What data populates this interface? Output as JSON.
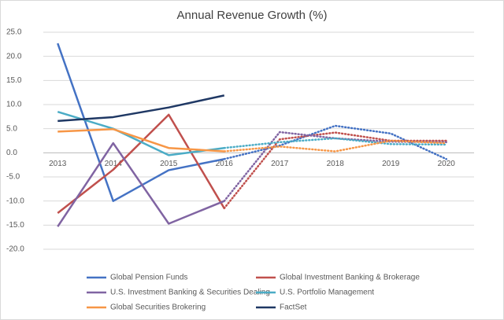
{
  "chart_data": {
    "type": "line",
    "title": "Annual Revenue Growth (%)",
    "categories": [
      "2013",
      "2014",
      "2015",
      "2016",
      "2017",
      "2018",
      "2019",
      "2020"
    ],
    "dotted_from": "2016",
    "ylim": [
      -20,
      25
    ],
    "yticks": [
      {
        "value": -20,
        "label": "-20.0"
      },
      {
        "value": -15,
        "label": "-15.0"
      },
      {
        "value": -10,
        "label": "-10.0"
      },
      {
        "value": -5,
        "label": "-5.0"
      },
      {
        "value": 0,
        "label": "0.0"
      },
      {
        "value": 5,
        "label": "5.0"
      },
      {
        "value": 10,
        "label": "10.0"
      },
      {
        "value": 15,
        "label": "15.0"
      },
      {
        "value": 20,
        "label": "20.0"
      },
      {
        "value": 25,
        "label": "25.0"
      }
    ],
    "grid": true,
    "legend": "bottom",
    "series": [
      {
        "name": "Global Pension Funds",
        "color": "#4472c4",
        "values": [
          22.7,
          -10.0,
          -3.6,
          -1.3,
          1.5,
          5.6,
          4.0,
          -1.3
        ]
      },
      {
        "name": "Global Investment Banking & Brokerage",
        "color": "#c0504d",
        "values": [
          -12.5,
          -3.5,
          7.9,
          -11.5,
          2.8,
          4.2,
          2.5,
          2.5
        ]
      },
      {
        "name": "U.S. Investment Banking & Securities Dealing",
        "color": "#8064a2",
        "values": [
          -15.3,
          2.0,
          -14.7,
          -10.0,
          4.3,
          3.0,
          2.3,
          2.2
        ]
      },
      {
        "name": "U.S. Portfolio Management",
        "color": "#4bacc6",
        "values": [
          8.5,
          5.0,
          -0.5,
          1.0,
          2.2,
          3.0,
          1.8,
          1.7
        ]
      },
      {
        "name": "Global Securities Brokering",
        "color": "#f79646",
        "values": [
          4.4,
          4.9,
          1.0,
          0.3,
          1.3,
          0.3,
          2.5,
          2.0
        ]
      },
      {
        "name": "FactSet",
        "color": "#1f3864",
        "values": [
          6.6,
          7.4,
          9.4,
          11.9,
          null,
          null,
          null,
          null
        ]
      }
    ]
  }
}
